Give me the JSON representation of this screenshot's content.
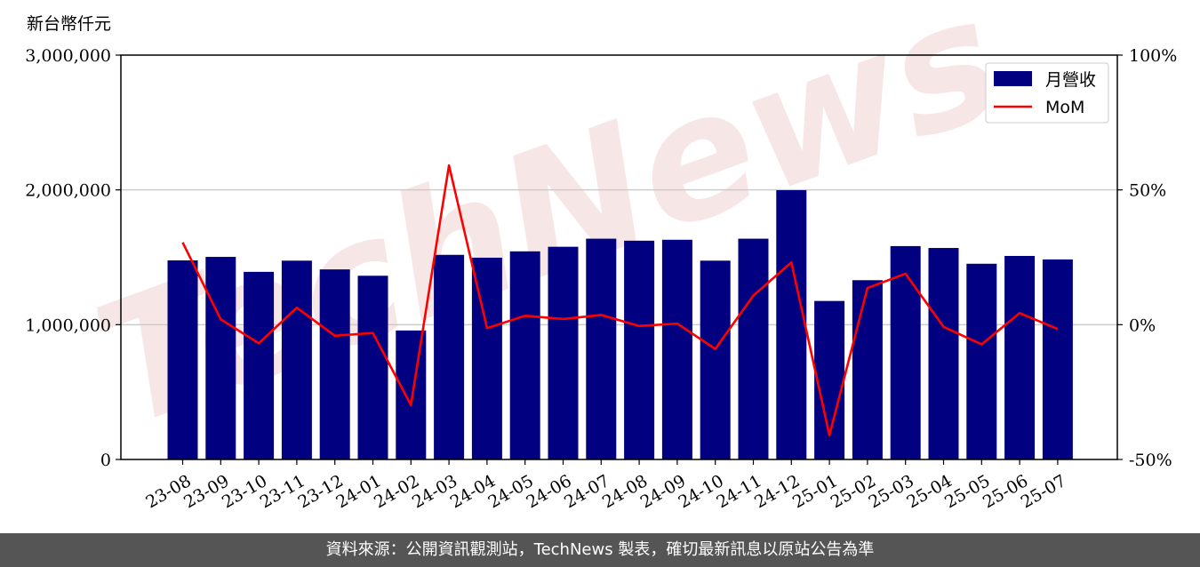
{
  "chart_data": {
    "type": "bar",
    "unit_label": "新台幣仟元",
    "categories": [
      "23-08",
      "23-09",
      "23-10",
      "23-11",
      "23-12",
      "24-01",
      "24-02",
      "24-03",
      "24-04",
      "24-05",
      "24-06",
      "24-07",
      "24-08",
      "24-09",
      "24-10",
      "24-11",
      "24-12",
      "25-01",
      "25-02",
      "25-03",
      "25-04",
      "25-05",
      "25-06",
      "25-07"
    ],
    "series": [
      {
        "name": "月營收",
        "type": "bar",
        "axis": "left",
        "color": "#000080",
        "values": [
          1477000,
          1503000,
          1392000,
          1475000,
          1410000,
          1363000,
          957000,
          1518000,
          1497000,
          1544000,
          1578000,
          1638000,
          1623000,
          1630000,
          1475000,
          1638000,
          1998000,
          1176000,
          1330000,
          1583000,
          1569000,
          1452000,
          1510000,
          1484000
        ]
      },
      {
        "name": "MoM",
        "type": "line",
        "axis": "right",
        "color": "#ff0000",
        "values": [
          30.5,
          2.0,
          -6.9,
          6.3,
          -4.1,
          -3.1,
          -29.8,
          59.1,
          -1.3,
          3.3,
          2.1,
          3.6,
          -0.5,
          0.4,
          -9.0,
          10.8,
          23.1,
          -41.0,
          13.6,
          18.9,
          -0.8,
          -7.3,
          4.3,
          -1.6
        ]
      }
    ],
    "ylim_left": [
      0,
      3000000
    ],
    "yticks_left": [
      "0",
      "1,000,000",
      "2,000,000",
      "3,000,000"
    ],
    "ylim_right": [
      -50,
      100
    ],
    "yticks_right": [
      "-50%",
      "0%",
      "50%",
      "100%"
    ],
    "grid": "horizontal",
    "legend_placement": "top-right",
    "watermark": "TechNews"
  },
  "footer": {
    "source_text": "資料來源：公開資訊觀測站，TechNews 製表，確切最新訊息以原站公告為準"
  }
}
